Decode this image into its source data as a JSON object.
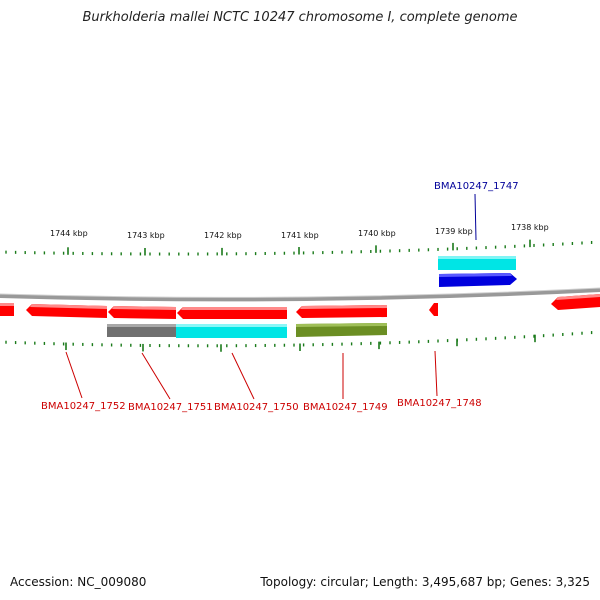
{
  "title": "Burkholderia mallei NCTC 10247 chromosome I, complete genome",
  "footer": {
    "accession": "Accession: NC_009080",
    "summary": "Topology: circular; Length: 3,495,687 bp; Genes: 3,325"
  },
  "kbp_labels": [
    "1744 kbp",
    "1743 kbp",
    "1742 kbp",
    "1741 kbp",
    "1740 kbp",
    "1739 kbp",
    "1738 kbp"
  ],
  "colors": {
    "forward_gene": "#ff0000",
    "reverse_gene": "#ff0000",
    "cds_cyan": "#00e5e5",
    "cds_blue": "#0000dd",
    "cds_olive": "#6b8e23",
    "cds_gray": "#777777",
    "backbone": "#888888",
    "ticks": "#1a7a1a",
    "label_red": "#cc0000",
    "label_blue": "#000099"
  },
  "gene_labels": [
    {
      "id": "BMA10247_1752",
      "color": "red"
    },
    {
      "id": "BMA10247_1751",
      "color": "red"
    },
    {
      "id": "BMA10247_1750",
      "color": "red"
    },
    {
      "id": "BMA10247_1749",
      "color": "red"
    },
    {
      "id": "BMA10247_1748",
      "color": "red"
    },
    {
      "id": "BMA10247_1747",
      "color": "blue"
    }
  ]
}
